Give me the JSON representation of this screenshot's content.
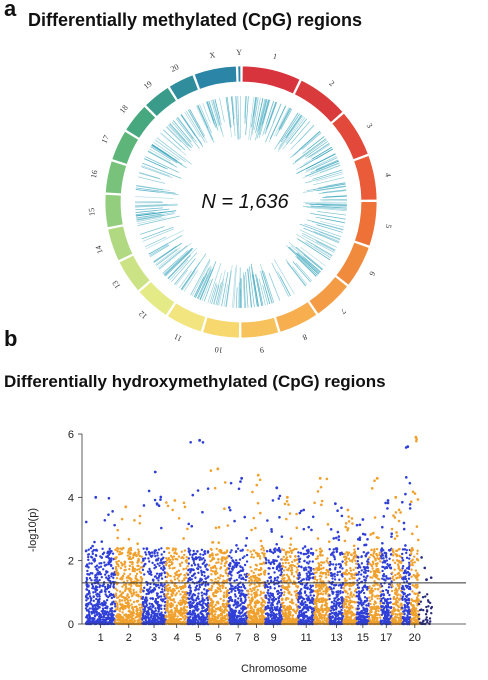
{
  "panel_a": {
    "label": "a",
    "title": "Differentially methylated (CpG) regions",
    "n_label": "N = 1,636"
  },
  "panel_b": {
    "label": "b",
    "title": "Differentially hydroxymethylated (CpG) regions"
  },
  "chart_data": [
    {
      "type": "circos",
      "chromosomes": [
        "1",
        "2",
        "3",
        "4",
        "5",
        "6",
        "7",
        "8",
        "9",
        "10",
        "11",
        "12",
        "13",
        "14",
        "15",
        "16",
        "17",
        "18",
        "19",
        "20",
        "X",
        "Y"
      ],
      "chromosome_colors": [
        "#d7343e",
        "#d93a3c",
        "#e2493a",
        "#ea5c39",
        "#ee7138",
        "#f08a3d",
        "#f39c45",
        "#f6ae4f",
        "#f7c25c",
        "#f6d86f",
        "#f2e57f",
        "#e3ea86",
        "#cce385",
        "#b1d982",
        "#93cd7e",
        "#78c27c",
        "#5eb57a",
        "#47a87f",
        "#3a9b8b",
        "#2f8d9c",
        "#2b85a7",
        "#2b85a7"
      ],
      "inner_track_color": "#3aa6bd",
      "n": 1636
    },
    {
      "type": "scatter",
      "subtype": "manhattan",
      "xlabel": "Chromosome",
      "ylabel": "-log10(p)",
      "ylim": [
        0,
        6
      ],
      "yticks": [
        0,
        2,
        4,
        6
      ],
      "x_tick_labels": [
        "1",
        "2",
        "3",
        "4",
        "5",
        "6",
        "7",
        "8",
        "9",
        "11",
        "13",
        "15",
        "17",
        "20"
      ],
      "chromosomes": [
        "1",
        "2",
        "3",
        "4",
        "5",
        "6",
        "7",
        "8",
        "9",
        "10",
        "11",
        "12",
        "13",
        "14",
        "15",
        "16",
        "17",
        "18",
        "19",
        "20",
        "21"
      ],
      "colors": [
        "#2f3fd6",
        "#f0a02c"
      ],
      "threshold": 1.3,
      "threshold_color": "#333333",
      "peak_values": [
        4.0,
        3.7,
        4.8,
        3.9,
        5.8,
        4.9,
        4.6,
        4.7,
        4.3,
        4.0,
        3.6,
        4.6,
        3.8,
        3.6,
        3.3,
        4.6,
        3.9,
        4.0,
        5.6,
        5.9,
        1.4
      ]
    }
  ]
}
